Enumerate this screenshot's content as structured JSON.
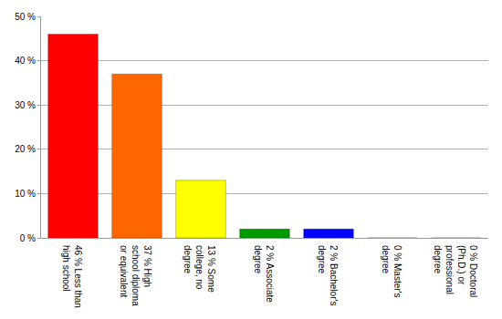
{
  "chart_data": {
    "type": "bar",
    "categories": [
      "46 % Less than\nhigh school",
      "37 % High\nschool diploma\nor equivalent",
      "13 % Some\ncollege, no\ndegree",
      "2 % Associate\ndegree",
      "2 % Bachelor's\ndegree",
      "0 % Master's\ndegree",
      "0 % Doctoral\n(Ph.D.) or\nprofessional\ndegree"
    ],
    "values": [
      46,
      37,
      13,
      2,
      2,
      0,
      0
    ],
    "colors": [
      "#ff0000",
      "#ff6600",
      "#ffff00",
      "#009900",
      "#0000ff",
      "#9900ff",
      "#ff00ff"
    ],
    "ylim": [
      0,
      50
    ],
    "yticks": [
      {
        "value": 0,
        "label": "0 %"
      },
      {
        "value": 10,
        "label": "10 %"
      },
      {
        "value": 20,
        "label": "20 %"
      },
      {
        "value": 30,
        "label": "30 %"
      },
      {
        "value": 40,
        "label": "40 %"
      },
      {
        "value": 50,
        "label": "50 %"
      }
    ],
    "grid": true
  }
}
